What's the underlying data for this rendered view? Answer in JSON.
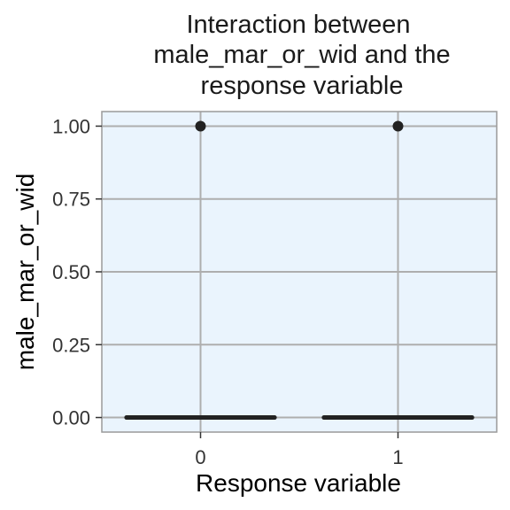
{
  "chart_data": {
    "type": "boxplot",
    "title_lines": [
      "Interaction between",
      "male_mar_or_wid and the",
      "response variable"
    ],
    "xlabel": "Response variable",
    "ylabel": "male_mar_or_wid",
    "categories": [
      "0",
      "1"
    ],
    "yticks": [
      "0.00",
      "0.25",
      "0.50",
      "0.75",
      "1.00"
    ],
    "ytick_values": [
      0,
      0.25,
      0.5,
      0.75,
      1.0
    ],
    "ylim": [
      -0.05,
      1.05
    ],
    "boxes": [
      {
        "category": "0",
        "min": 0,
        "q1": 0,
        "median": 0,
        "q3": 0,
        "max": 0,
        "outliers": [
          1
        ]
      },
      {
        "category": "1",
        "min": 0,
        "q1": 0,
        "median": 0,
        "q3": 0,
        "max": 0,
        "outliers": [
          1
        ]
      }
    ],
    "grid": true,
    "colors": {
      "panel": "#eaf4fd",
      "grid": "#aeaeae",
      "border": "#9a9a9a",
      "box": "#222222"
    }
  }
}
